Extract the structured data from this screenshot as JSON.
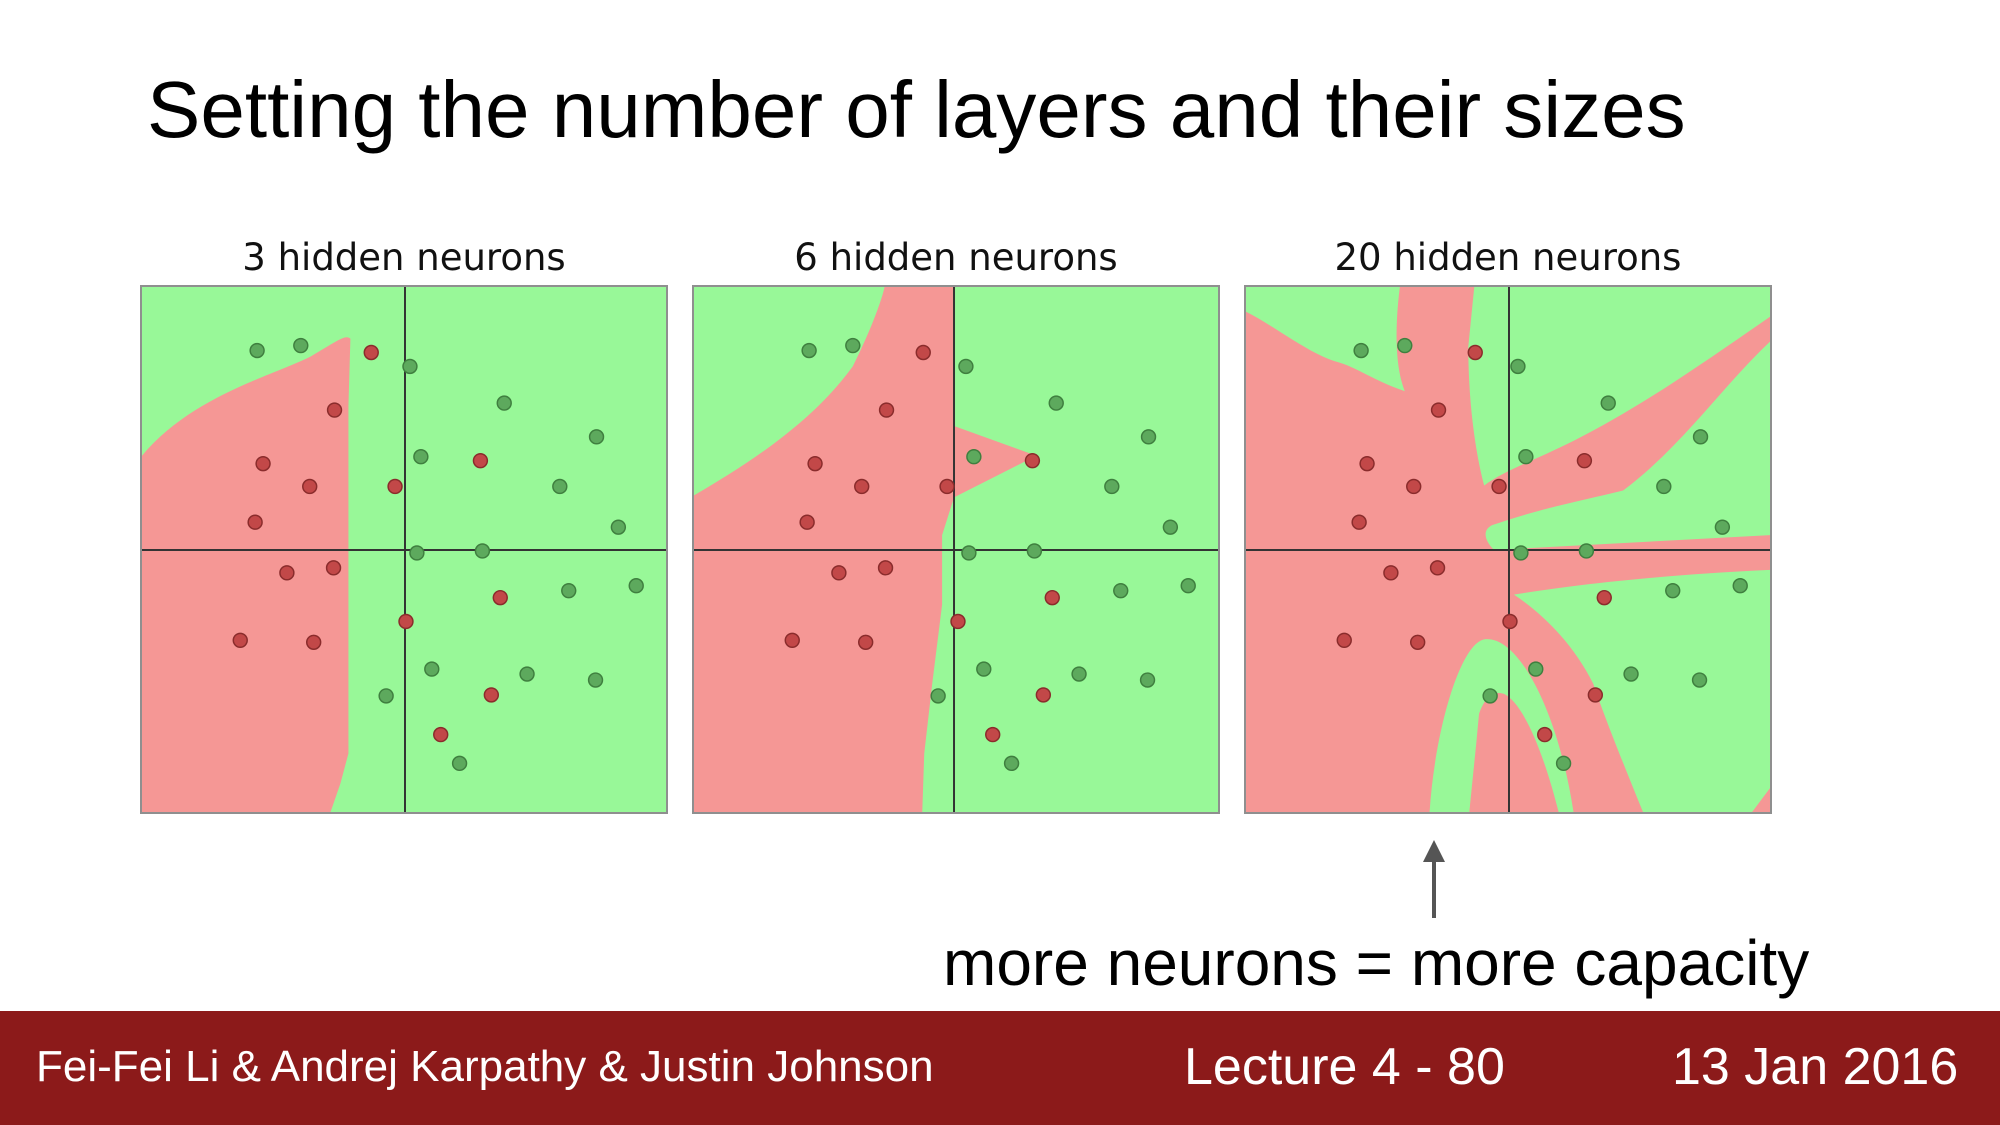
{
  "slide": {
    "title": "Setting the number of layers and their sizes",
    "caption": "more neurons = more capacity"
  },
  "panels": [
    {
      "title": "3 hidden neurons"
    },
    {
      "title": "6 hidden neurons"
    },
    {
      "title": "20 hidden neurons"
    }
  ],
  "colors": {
    "region_green": "#98f898",
    "region_red": "#f59795",
    "point_green": "#4f9d4f",
    "point_red": "#b23b3b",
    "axis": "#333333",
    "footer_bg": "#8c1a1a",
    "footer_text": "#ffffff"
  },
  "footer": {
    "authors": "Fei-Fei Li & Andrej Karpathy & Justin Johnson",
    "lecture": "Lecture 4 - 80",
    "date": "13 Jan 2016"
  }
}
